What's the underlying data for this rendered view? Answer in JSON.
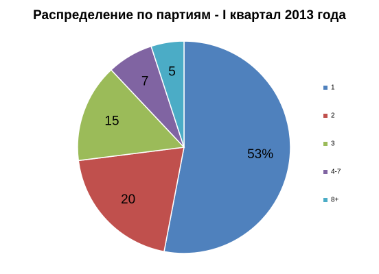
{
  "chart_data": {
    "type": "pie",
    "title": "Распределение по партиям - I квартал 2013 года",
    "categories": [
      "1",
      "2",
      "3",
      " 4-7",
      "8+"
    ],
    "values": [
      53,
      20,
      15,
      7,
      5
    ],
    "labels": [
      "53%",
      "20",
      "15",
      "7",
      "5"
    ],
    "colors": [
      "#4f81bd",
      "#c0504d",
      "#9bbb59",
      "#8064a2",
      "#4bacc6"
    ],
    "legend_position": "right"
  }
}
